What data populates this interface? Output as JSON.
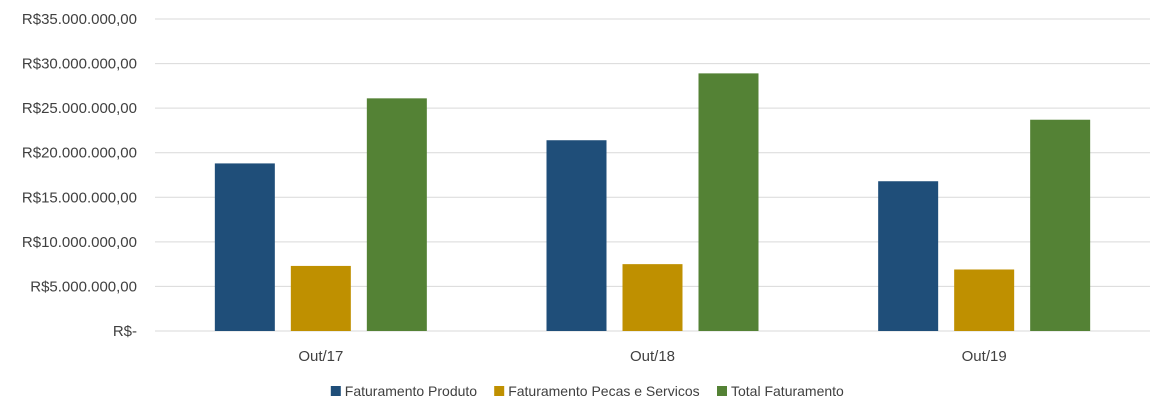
{
  "chart_data": {
    "type": "bar",
    "title": "",
    "xlabel": "",
    "ylabel": "",
    "categories": [
      "Out/17",
      "Out/18",
      "Out/19"
    ],
    "y_ticks": [
      0,
      5000000,
      10000000,
      15000000,
      20000000,
      25000000,
      30000000,
      35000000
    ],
    "y_tick_labels": [
      "R$-",
      "R$5.000.000,00",
      "R$10.000.000,00",
      "R$15.000.000,00",
      "R$20.000.000,00",
      "R$25.000.000,00",
      "R$30.000.000,00",
      "R$35.000.000,00"
    ],
    "ylim": [
      0,
      35000000
    ],
    "grid": true,
    "legend_position": "bottom",
    "series": [
      {
        "name": "Faturamento Produto",
        "color": "#1F4E79",
        "values": [
          18800000,
          21400000,
          16800000
        ]
      },
      {
        "name": "Faturamento Pecas e Servicos",
        "color": "#BF9000",
        "values": [
          7300000,
          7500000,
          6900000
        ]
      },
      {
        "name": "Total Faturamento",
        "color": "#548235",
        "values": [
          26100000,
          28900000,
          23700000
        ]
      }
    ]
  }
}
